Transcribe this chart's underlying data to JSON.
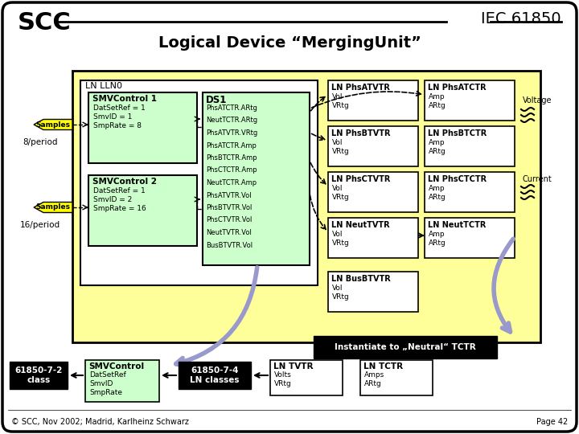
{
  "title": "Logical Device “MergingUnit”",
  "scc_text": "SCC",
  "iec_text": "IEC 61850",
  "bg_color": "#ffffff",
  "yellow_bg": "#ffff99",
  "green_bg": "#ccffcc",
  "footer_left": "© SCC, Nov 2002; Madrid, Karlheinz Schwarz",
  "footer_right": "Page 42",
  "ln_llno_label": "LN LLN0",
  "smc1_title": "SMVControl 1",
  "smc1_lines": [
    "DatSetRef = 1",
    "SmvID = 1",
    "SmpRate = 8"
  ],
  "smc2_title": "SMVControl 2",
  "smc2_lines": [
    "DatSetRef = 1",
    "SmvID = 2",
    "SmpRate = 16"
  ],
  "ds1_title": "DS1",
  "ds1_lines": [
    "PhsATCTR.ARtg",
    "NeutTCTR.ARtg",
    "PhsATVTR.VRtg",
    "PhsATCTR.Amp",
    "PhsBTCTR.Amp",
    "PhsCTCTR.Amp",
    "NeutTCTR.Amp",
    "PhsATVTR.Vol",
    "PhsBTVTR.Vol",
    "PhsCTVTR.Vol",
    "NeutTVTR.Vol",
    "BusBTVTR.Vol"
  ],
  "ln_boxes_left": [
    {
      "title": "LN PhsATVTR",
      "lines": [
        "Vol",
        "VRtg"
      ]
    },
    {
      "title": "LN PhsBTVTR",
      "lines": [
        "Vol",
        "VRtg"
      ]
    },
    {
      "title": "LN PhsCTVTR",
      "lines": [
        "Vol",
        "VRtg"
      ]
    },
    {
      "title": "LN NeutTVTR",
      "lines": [
        "Vol",
        "VRtg"
      ]
    },
    {
      "title": "LN BusBTVTR",
      "lines": [
        "Vol",
        "VRtg"
      ]
    }
  ],
  "ln_boxes_right": [
    {
      "title": "LN PhsATCTR",
      "lines": [
        "Amp",
        "ARtg"
      ]
    },
    {
      "title": "LN PhsBTCTR",
      "lines": [
        "Amp",
        "ARtg"
      ]
    },
    {
      "title": "LN PhsCTCTR",
      "lines": [
        "Amp",
        "ARtg"
      ]
    },
    {
      "title": "LN NeutTCTR",
      "lines": [
        "Amp",
        "ARtg"
      ]
    }
  ],
  "samples_label": "Samples",
  "period1": "8/period",
  "period2": "16/period",
  "voltage_label": "Voltage",
  "current_label": "Current",
  "instantiate_label": "Instantiate to „Neutral“ TCTR",
  "smc_bottom_title": "SMVControl",
  "smc_bottom_lines": [
    "DatSetRef",
    "SmvID",
    "SmpRate"
  ],
  "class1_label": "61850-7-2\nclass",
  "class2_label": "61850-7-4\nLN classes",
  "ln_tvtr": {
    "title": "LN TVTR",
    "lines": [
      "Volts",
      "VRtg"
    ]
  },
  "ln_tctr": {
    "title": "LN TCTR",
    "lines": [
      "Amps",
      "ARtg"
    ]
  }
}
